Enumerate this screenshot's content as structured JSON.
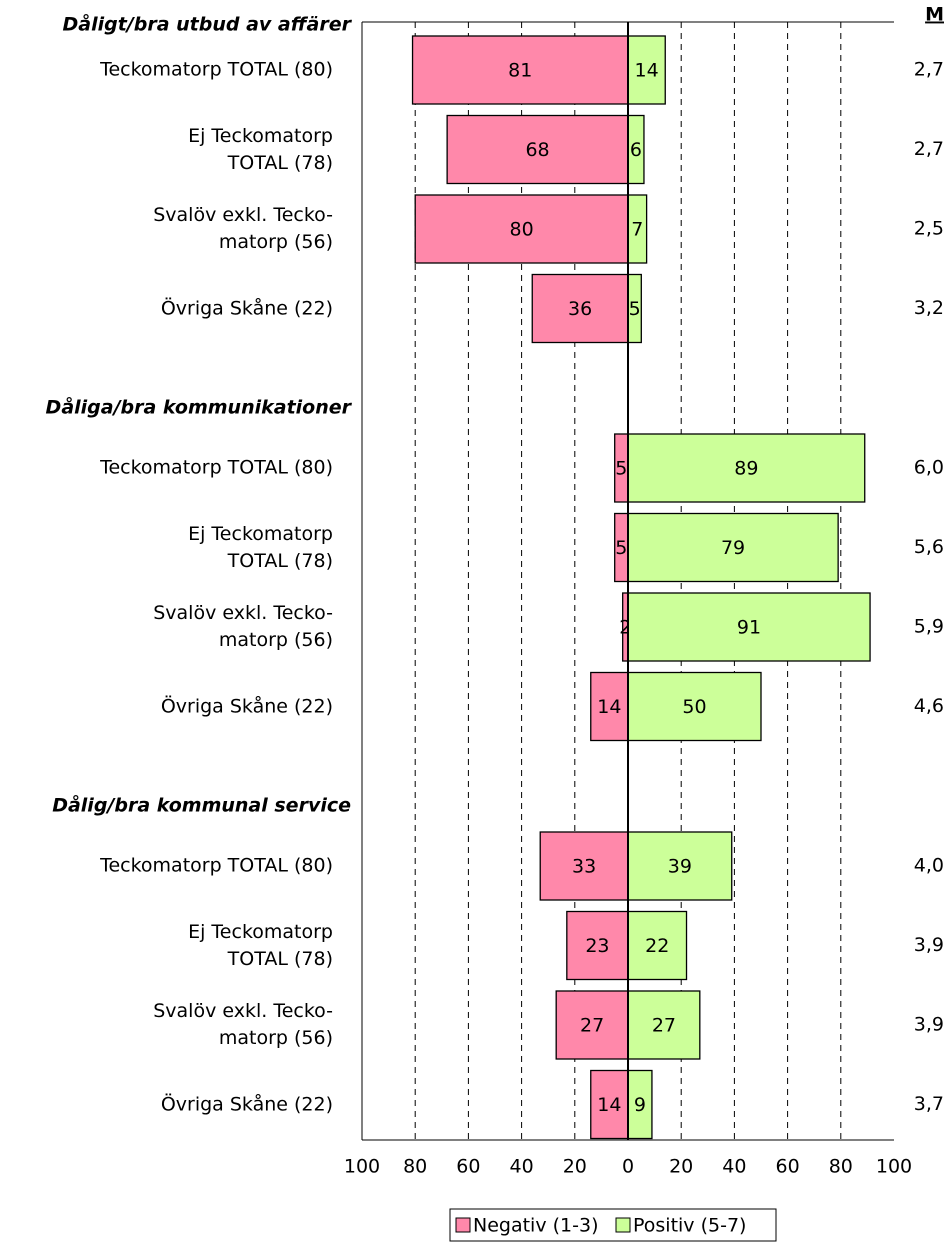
{
  "chart_data": {
    "type": "diverging-bar",
    "xlim": [
      -100,
      100
    ],
    "xticks": [
      {
        "value": -100,
        "label": "100"
      },
      {
        "value": -80,
        "label": "80"
      },
      {
        "value": -60,
        "label": "60"
      },
      {
        "value": -40,
        "label": "40"
      },
      {
        "value": -20,
        "label": "20"
      },
      0,
      20,
      40,
      60,
      80,
      100
    ],
    "grid": true,
    "legend": "bottom",
    "mean_header": "M",
    "series": [
      {
        "name": "Negativ (1-3)",
        "color": "#ff88aa"
      },
      {
        "name": "Positiv (5-7)",
        "color": "#ccff99"
      }
    ],
    "groups": [
      {
        "title": "Dåligt/bra utbud av affärer",
        "categories": [
          "Teckomatorp TOTAL (80)",
          "Ej Teckomatorp\nTOTAL (78)",
          "Svalöv exkl. Tecko-\nmatorp (56)",
          "Övriga Skåne (22)"
        ],
        "series": [
          {
            "values": [
              -81,
              -68,
              -80,
              -36
            ],
            "value_labels": [
              "81",
              "68",
              "80",
              "36"
            ]
          },
          {
            "values": [
              14,
              6,
              7,
              5
            ]
          }
        ],
        "means": [
          "2,7",
          "2,7",
          "2,5",
          "3,2"
        ]
      },
      {
        "title": "Dåliga/bra kommunikationer",
        "categories": [
          "Teckomatorp TOTAL (80)",
          "Ej Teckomatorp\nTOTAL (78)",
          "Svalöv exkl. Tecko-\nmatorp (56)",
          "Övriga Skåne (22)"
        ],
        "series": [
          {
            "values": [
              -5,
              -5,
              -2,
              -14
            ],
            "value_labels": [
              "5",
              "5",
              "2",
              "14"
            ]
          },
          {
            "values": [
              89,
              79,
              91,
              50
            ]
          }
        ],
        "means": [
          "6,0",
          "5,6",
          "5,9",
          "4,6"
        ]
      },
      {
        "title": "Dålig/bra kommunal service",
        "categories": [
          "Teckomatorp TOTAL (80)",
          "Ej Teckomatorp\nTOTAL (78)",
          "Svalöv exkl. Tecko-\nmatorp (56)",
          "Övriga Skåne (22)"
        ],
        "series": [
          {
            "values": [
              -33,
              -23,
              -27,
              -14
            ],
            "value_labels": [
              "33",
              "23",
              "27",
              "14"
            ]
          },
          {
            "values": [
              39,
              22,
              27,
              9
            ]
          }
        ],
        "means": [
          "4,0",
          "3,9",
          "3,9",
          "3,7"
        ]
      }
    ]
  }
}
